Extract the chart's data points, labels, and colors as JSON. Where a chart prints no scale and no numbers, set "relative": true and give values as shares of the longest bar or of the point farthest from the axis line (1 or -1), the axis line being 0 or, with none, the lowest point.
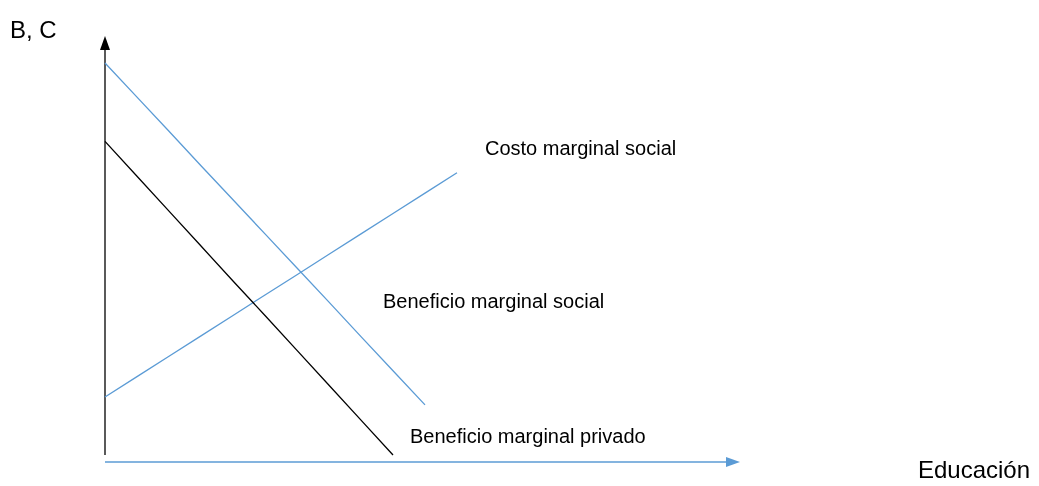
{
  "chart_data": {
    "type": "line",
    "relative": true,
    "ylabel": "B, C",
    "annotations": [
      "Educación"
    ],
    "legend": false,
    "line_style": "solid",
    "categories": [
      null,
      null,
      null,
      null,
      null,
      null,
      null,
      null,
      null,
      null,
      null,
      null,
      null,
      null,
      null,
      null,
      null,
      null,
      null,
      null
    ],
    "series": [
      {
        "name": "Costo marginal social",
        "color": "#5b9bd5",
        "values": [
          0.148,
          0.2,
          0.252,
          0.304,
          0.356,
          0.408,
          0.46,
          0.512,
          0.564,
          0.616,
          0.668,
          0.72,
          null,
          null,
          null,
          null,
          null,
          null,
          null,
          null
        ]
      },
      {
        "name": "Beneficio marginal social",
        "color": "#5b9bd5",
        "values": [
          1,
          0.913,
          0.826,
          0.738,
          0.651,
          0.564,
          0.477,
          0.39,
          0.302,
          0.215,
          0.128,
          null,
          null,
          null,
          null,
          null,
          null,
          null,
          null,
          null
        ]
      },
      {
        "name": "Beneficio marginal privado",
        "color": "#000000",
        "values": [
          0.8,
          0.711,
          0.622,
          0.533,
          0.444,
          0.356,
          0.267,
          0.178,
          0.089,
          0,
          null,
          null,
          null,
          null,
          null,
          null,
          null,
          null,
          null,
          null
        ]
      }
    ]
  }
}
